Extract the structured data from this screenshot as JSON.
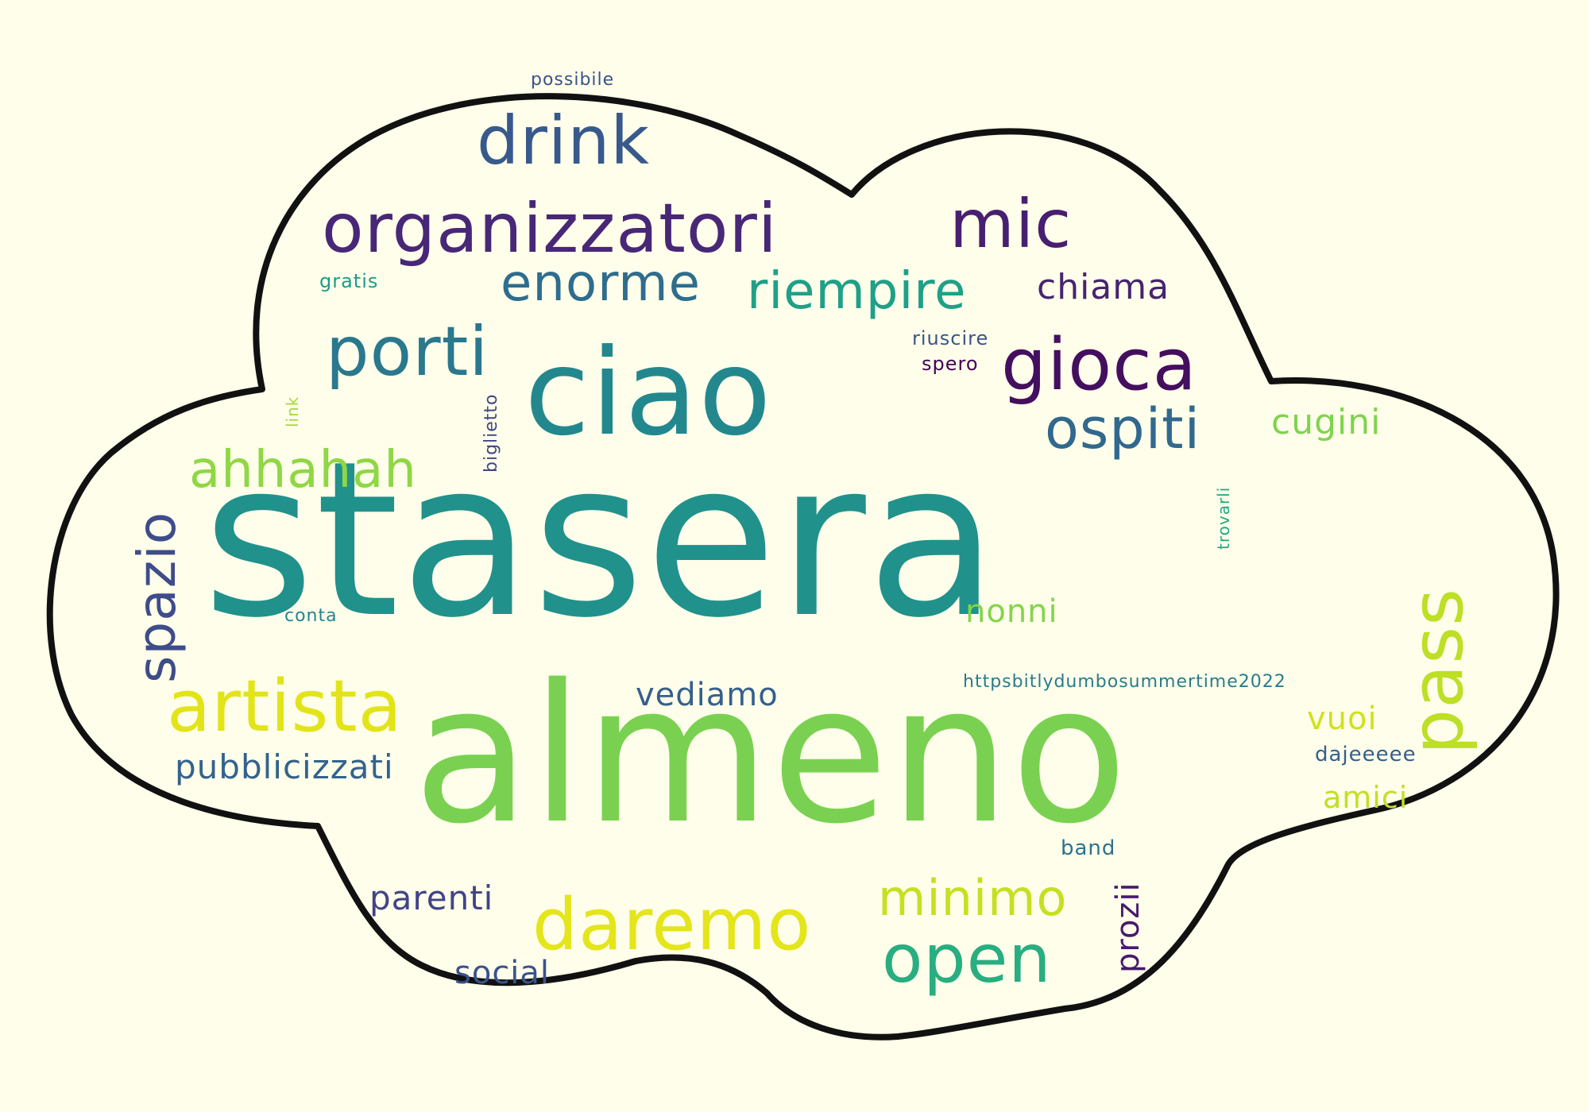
{
  "background": "#fefeea",
  "outline_color": "#111111",
  "words": [
    {
      "id": "stasera",
      "text": "stasera",
      "color": "#21918c"
    },
    {
      "id": "almeno",
      "text": "almeno",
      "color": "#7ad151"
    },
    {
      "id": "ciao",
      "text": "ciao",
      "color": "#23888e"
    },
    {
      "id": "organizzatori",
      "text": "organizzatori",
      "color": "#482777"
    },
    {
      "id": "drink",
      "text": "drink",
      "color": "#38598c"
    },
    {
      "id": "mic",
      "text": "mic",
      "color": "#481f70"
    },
    {
      "id": "porti",
      "text": "porti",
      "color": "#2a788e"
    },
    {
      "id": "gioca",
      "text": "gioca",
      "color": "#440f5e"
    },
    {
      "id": "enorme",
      "text": "enorme",
      "color": "#2e6d8e"
    },
    {
      "id": "riempire",
      "text": "riempire",
      "color": "#1fa088"
    },
    {
      "id": "ospiti",
      "text": "ospiti",
      "color": "#31688e"
    },
    {
      "id": "daremo",
      "text": "daremo",
      "color": "#e4e51a"
    },
    {
      "id": "artista",
      "text": "artista",
      "color": "#e2e418"
    },
    {
      "id": "open",
      "text": "open",
      "color": "#28ae80"
    },
    {
      "id": "minimo",
      "text": "minimo",
      "color": "#c6e021"
    },
    {
      "id": "pass",
      "text": "pass",
      "color": "#bddf26"
    },
    {
      "id": "spazio",
      "text": "spazio",
      "color": "#3e4c8a"
    },
    {
      "id": "ahhahah",
      "text": "ahhahah",
      "color": "#8fd744"
    },
    {
      "id": "chiama",
      "text": "chiama",
      "color": "#46246f"
    },
    {
      "id": "cugini",
      "text": "cugini",
      "color": "#7fd34e"
    },
    {
      "id": "nonni",
      "text": "nonni",
      "color": "#84d44b"
    },
    {
      "id": "vediamo",
      "text": "vediamo",
      "color": "#35608d"
    },
    {
      "id": "pubblicizzati",
      "text": "pubblicizzati",
      "color": "#33638d"
    },
    {
      "id": "parenti",
      "text": "parenti",
      "color": "#414487"
    },
    {
      "id": "social",
      "text": "social",
      "color": "#3b528b"
    },
    {
      "id": "vuoi",
      "text": "vuoi",
      "color": "#d0e11c"
    },
    {
      "id": "amici",
      "text": "amici",
      "color": "#c2df23"
    },
    {
      "id": "prozii",
      "text": "prozii",
      "color": "#481a6c"
    },
    {
      "id": "dajeeeee",
      "text": "dajeeeee",
      "color": "#355f8d"
    },
    {
      "id": "band",
      "text": "band",
      "color": "#2c728e"
    },
    {
      "id": "url",
      "text": "httpsbitlydumbosummertime2022",
      "color": "#287c8e"
    },
    {
      "id": "riuscire",
      "text": "riuscire",
      "color": "#3a548c"
    },
    {
      "id": "spero",
      "text": "spero",
      "color": "#440154"
    },
    {
      "id": "gratis",
      "text": "gratis",
      "color": "#1e9b8a"
    },
    {
      "id": "possibile",
      "text": "possibile",
      "color": "#3b528b"
    },
    {
      "id": "link",
      "text": "link",
      "color": "#a5db36"
    },
    {
      "id": "biglietto",
      "text": "biglietto",
      "color": "#404688"
    },
    {
      "id": "trovarli",
      "text": "trovarli",
      "color": "#22a884"
    },
    {
      "id": "conta",
      "text": "conta",
      "color": "#25848e"
    }
  ]
}
